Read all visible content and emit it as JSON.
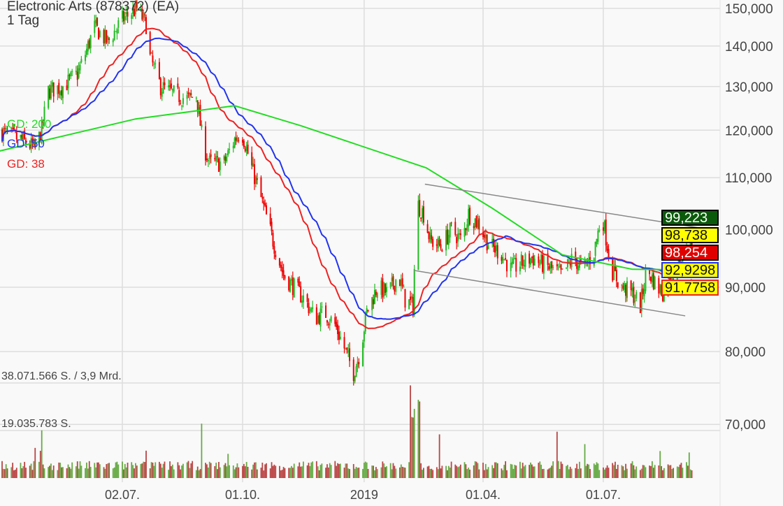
{
  "header": {
    "title": "Electronic Arts (878372) (EA)",
    "interval": "1 Tag"
  },
  "legend": [
    {
      "label": "GD: 200",
      "color": "#22dd22"
    },
    {
      "label": "GD: 50",
      "color": "#2233ee"
    },
    {
      "label": "GD: 38",
      "color": "#ee2222"
    }
  ],
  "price_tags": [
    {
      "text": "99,223",
      "bg": "#0b5a0b",
      "fg": "#ffffff",
      "border": "#000000"
    },
    {
      "text": "98,738",
      "bg": "#ffff00",
      "fg": "#111111",
      "border": "#000000"
    },
    {
      "text": "98,254",
      "bg": "#e00000",
      "fg": "#ffffff",
      "border": "#000000"
    },
    {
      "text": "92,9298",
      "bg": "#ffff00",
      "fg": "#111111",
      "border": "#2233ee"
    },
    {
      "text": "91,7758",
      "bg": "#ffff00",
      "fg": "#111111",
      "border": "#ee2222"
    }
  ],
  "chart_data": {
    "type": "candlestick",
    "title": "Electronic Arts (878372) (EA)",
    "y_scale": "log",
    "ylim": [
      68,
      152
    ],
    "y_ticks": [
      {
        "value": 150,
        "label": "150,000"
      },
      {
        "value": 140,
        "label": "140,000"
      },
      {
        "value": 130,
        "label": "130,000"
      },
      {
        "value": 120,
        "label": "120,000"
      },
      {
        "value": 110,
        "label": "110,000"
      },
      {
        "value": 100,
        "label": "100,000"
      },
      {
        "value": 90,
        "label": "90,000"
      },
      {
        "value": 80,
        "label": "80,000"
      },
      {
        "value": 70,
        "label": "70,000"
      }
    ],
    "x_ticks": [
      {
        "date": "2018-07-02",
        "label": "02.07."
      },
      {
        "date": "2018-10-01",
        "label": "01.10."
      },
      {
        "date": "2019-01-01",
        "label": "2019"
      },
      {
        "date": "2019-04-01",
        "label": "01.04."
      },
      {
        "date": "2019-07-01",
        "label": "01.07."
      }
    ],
    "xlim": [
      "2018-03-31",
      "2019-09-22"
    ],
    "grid": true,
    "up_color": "#22bb22",
    "down_color": "#ee0000",
    "close": [
      [
        "2018-03-31",
        120
      ],
      [
        "2018-04-06",
        119
      ],
      [
        "2018-04-16",
        118
      ],
      [
        "2018-04-27",
        116
      ],
      [
        "2018-05-02",
        120
      ],
      [
        "2018-05-07",
        129
      ],
      [
        "2018-05-18",
        130
      ],
      [
        "2018-05-29",
        133
      ],
      [
        "2018-06-03",
        137
      ],
      [
        "2018-06-11",
        145
      ],
      [
        "2018-06-21",
        141
      ],
      [
        "2018-07-02",
        147
      ],
      [
        "2018-07-13",
        150
      ],
      [
        "2018-07-21",
        145
      ],
      [
        "2018-07-23",
        137
      ],
      [
        "2018-07-31",
        130
      ],
      [
        "2018-08-11",
        128
      ],
      [
        "2018-08-21",
        127
      ],
      [
        "2018-08-27",
        128
      ],
      [
        "2018-09-01",
        117
      ],
      [
        "2018-09-06",
        113
      ],
      [
        "2018-09-17",
        113
      ],
      [
        "2018-09-25",
        118
      ],
      [
        "2018-09-30",
        120
      ],
      [
        "2018-10-08",
        112
      ],
      [
        "2018-10-16",
        105
      ],
      [
        "2018-10-24",
        98
      ],
      [
        "2018-11-01",
        92
      ],
      [
        "2018-11-09",
        90
      ],
      [
        "2018-11-17",
        88
      ],
      [
        "2018-11-25",
        85
      ],
      [
        "2018-12-02",
        86
      ],
      [
        "2018-12-10",
        84
      ],
      [
        "2018-12-18",
        80
      ],
      [
        "2018-12-24",
        77
      ],
      [
        "2018-12-29",
        80
      ],
      [
        "2019-01-03",
        86
      ],
      [
        "2019-01-11",
        90
      ],
      [
        "2019-01-19",
        89
      ],
      [
        "2019-01-27",
        92
      ],
      [
        "2019-02-01",
        88
      ],
      [
        "2019-02-07",
        87
      ],
      [
        "2019-02-10",
        105
      ],
      [
        "2019-02-15",
        103
      ],
      [
        "2019-02-20",
        98
      ],
      [
        "2019-02-28",
        97
      ],
      [
        "2019-03-08",
        100
      ],
      [
        "2019-03-16",
        98
      ],
      [
        "2019-03-21",
        103
      ],
      [
        "2019-03-29",
        101
      ],
      [
        "2019-04-06",
        97
      ],
      [
        "2019-04-14",
        96
      ],
      [
        "2019-04-22",
        93
      ],
      [
        "2019-04-30",
        94
      ],
      [
        "2019-05-08",
        95
      ],
      [
        "2019-05-15",
        94
      ],
      [
        "2019-05-23",
        93
      ],
      [
        "2019-05-31",
        92
      ],
      [
        "2019-06-08",
        95
      ],
      [
        "2019-06-16",
        93
      ],
      [
        "2019-06-24",
        96
      ],
      [
        "2019-06-30",
        103
      ],
      [
        "2019-07-07",
        93
      ],
      [
        "2019-07-15",
        90
      ],
      [
        "2019-07-23",
        89
      ],
      [
        "2019-07-29",
        87
      ],
      [
        "2019-08-03",
        93
      ],
      [
        "2019-08-11",
        90
      ],
      [
        "2019-08-16",
        89
      ],
      [
        "2019-08-24",
        93
      ],
      [
        "2019-09-01",
        95
      ],
      [
        "2019-09-08",
        99.223
      ]
    ],
    "moving_averages": [
      {
        "name": "GD: 38",
        "period": 38,
        "color": "#ee2222"
      },
      {
        "name": "GD: 50",
        "period": 50,
        "color": "#2233ee"
      },
      {
        "name": "GD: 200",
        "period": 200,
        "color": "#22dd22",
        "values": [
          [
            "2018-03-31",
            115.5
          ],
          [
            "2018-07-12",
            122.5
          ],
          [
            "2018-09-25",
            125.5
          ],
          [
            "2018-11-14",
            121
          ],
          [
            "2019-02-17",
            112
          ],
          [
            "2019-04-08",
            104
          ],
          [
            "2019-05-31",
            95.5
          ],
          [
            "2019-07-23",
            93
          ],
          [
            "2019-09-08",
            92.9
          ]
        ]
      }
    ],
    "trend_channel": [
      {
        "from": [
          "2019-02-16",
          108.7
        ],
        "to": [
          "2019-09-18",
          100.1
        ]
      },
      {
        "from": [
          "2019-02-08",
          92.8
        ],
        "to": [
          "2019-09-01",
          85.4
        ]
      }
    ],
    "volume": {
      "labels": [
        "38.071.566 S. / 3,9 Mrd.",
        "19.035.783 S."
      ],
      "max": 38071566,
      "mid": 19035783,
      "up_color": "#66aa44",
      "down_color": "#bb4444"
    }
  }
}
